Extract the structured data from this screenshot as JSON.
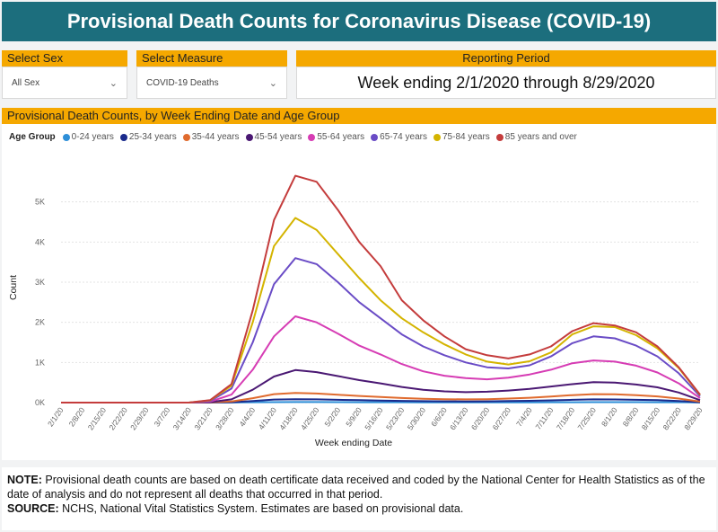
{
  "header": {
    "title": "Provisional Death Counts for Coronavirus Disease (COVID-19)"
  },
  "filters": {
    "sex": {
      "label": "Select Sex",
      "value": "All Sex"
    },
    "measure": {
      "label": "Select Measure",
      "value": "COVID-19 Deaths"
    },
    "period": {
      "label": "Reporting Period",
      "value": "Week ending 2/1/2020 through 8/29/2020"
    }
  },
  "chart_title": "Provisional Death Counts, by Week Ending Date and Age Group",
  "legend_title": "Age Group",
  "footer": {
    "note_label": "NOTE:",
    "note_text": " Provisional death counts are based on death certificate data received and coded by the National Center for Health Statistics as of the date of analysis and do not represent all deaths that occurred in that period.",
    "source_label": "SOURCE:",
    "source_text": " NCHS, National Vital Statistics System. Estimates are based on provisional data."
  },
  "chart_data": {
    "type": "line",
    "title": "Provisional Death Counts, by Week Ending Date and Age Group",
    "xlabel": "Week ending Date",
    "ylabel": "Count",
    "ylim": [
      0,
      6000
    ],
    "yticks": [
      0,
      1000,
      2000,
      3000,
      4000,
      5000
    ],
    "ytick_labels": [
      "0K",
      "1K",
      "2K",
      "3K",
      "4K",
      "5K"
    ],
    "grid": true,
    "categories": [
      "2/1/20",
      "2/8/20",
      "2/15/20",
      "2/22/20",
      "2/29/20",
      "3/7/20",
      "3/14/20",
      "3/21/20",
      "3/28/20",
      "4/4/20",
      "4/11/20",
      "4/18/20",
      "4/25/20",
      "5/2/20",
      "5/9/20",
      "5/16/20",
      "5/23/20",
      "5/30/20",
      "6/6/20",
      "6/13/20",
      "6/20/20",
      "6/27/20",
      "7/4/20",
      "7/11/20",
      "7/18/20",
      "7/25/20",
      "8/1/20",
      "8/8/20",
      "8/15/20",
      "8/22/20",
      "8/29/20"
    ],
    "series": [
      {
        "name": "0-24 years",
        "color": "#2e8fd8",
        "values": [
          0,
          0,
          0,
          0,
          0,
          0,
          0,
          0,
          2,
          8,
          12,
          14,
          13,
          12,
          10,
          9,
          8,
          7,
          6,
          6,
          6,
          6,
          7,
          8,
          10,
          12,
          12,
          11,
          10,
          8,
          3
        ]
      },
      {
        "name": "25-34 years",
        "color": "#1a2a8c",
        "values": [
          0,
          0,
          0,
          0,
          0,
          0,
          0,
          2,
          10,
          40,
          75,
          85,
          80,
          70,
          60,
          50,
          42,
          36,
          32,
          30,
          32,
          38,
          45,
          55,
          70,
          80,
          78,
          70,
          60,
          40,
          10
        ]
      },
      {
        "name": "35-44 years",
        "color": "#e06b2e",
        "values": [
          0,
          0,
          0,
          0,
          0,
          0,
          0,
          5,
          30,
          110,
          210,
          240,
          225,
          195,
          165,
          140,
          115,
          95,
          85,
          80,
          85,
          100,
          120,
          150,
          185,
          210,
          205,
          185,
          155,
          100,
          25
        ]
      },
      {
        "name": "45-54 years",
        "color": "#4a1873",
        "values": [
          0,
          0,
          0,
          0,
          0,
          0,
          0,
          12,
          80,
          320,
          650,
          810,
          760,
          660,
          560,
          480,
          390,
          320,
          280,
          260,
          270,
          300,
          340,
          400,
          460,
          510,
          500,
          450,
          380,
          250,
          60
        ]
      },
      {
        "name": "55-64 years",
        "color": "#d63cb4",
        "values": [
          0,
          0,
          0,
          0,
          0,
          0,
          0,
          25,
          200,
          820,
          1650,
          2150,
          2000,
          1720,
          1420,
          1200,
          960,
          780,
          670,
          610,
          580,
          620,
          700,
          820,
          980,
          1050,
          1020,
          920,
          750,
          480,
          110
        ]
      },
      {
        "name": "65-74 years",
        "color": "#6a4cc6",
        "values": [
          0,
          0,
          0,
          0,
          0,
          0,
          0,
          40,
          350,
          1500,
          2950,
          3600,
          3450,
          3000,
          2500,
          2100,
          1700,
          1400,
          1180,
          1000,
          880,
          850,
          930,
          1150,
          1480,
          1650,
          1600,
          1420,
          1150,
          730,
          160
        ]
      },
      {
        "name": "75-84 years",
        "color": "#d4b400",
        "values": [
          0,
          0,
          0,
          0,
          0,
          0,
          0,
          55,
          420,
          2000,
          3900,
          4600,
          4300,
          3700,
          3100,
          2550,
          2100,
          1750,
          1450,
          1200,
          1020,
          950,
          1030,
          1250,
          1700,
          1900,
          1880,
          1680,
          1350,
          860,
          190
        ]
      },
      {
        "name": "85 years and over",
        "color": "#c43c3c",
        "values": [
          0,
          0,
          0,
          0,
          0,
          0,
          0,
          60,
          460,
          2300,
          4550,
          5650,
          5500,
          4800,
          4000,
          3400,
          2550,
          2050,
          1650,
          1330,
          1180,
          1100,
          1200,
          1400,
          1780,
          1980,
          1920,
          1750,
          1400,
          880,
          200
        ]
      }
    ]
  }
}
